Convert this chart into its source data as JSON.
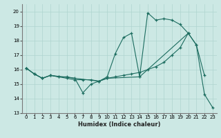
{
  "xlabel": "Humidex (Indice chaleur)",
  "bg_color": "#cce8e4",
  "grid_color": "#aed4cf",
  "line_color": "#1a6b5e",
  "xlim": [
    -0.5,
    23.5
  ],
  "ylim": [
    13,
    20.5
  ],
  "yticks": [
    13,
    14,
    15,
    16,
    17,
    18,
    19,
    20
  ],
  "xticks": [
    0,
    1,
    2,
    3,
    4,
    5,
    6,
    7,
    8,
    9,
    10,
    11,
    12,
    13,
    14,
    15,
    16,
    17,
    18,
    19,
    20,
    21,
    22,
    23
  ],
  "line1_x": [
    0,
    1,
    2,
    3,
    4,
    5,
    6,
    7,
    8,
    9,
    10,
    11,
    12,
    13,
    14,
    15,
    16,
    17,
    18,
    19,
    20,
    21,
    22
  ],
  "line1_y": [
    16.1,
    15.7,
    15.4,
    15.6,
    15.5,
    15.5,
    15.4,
    14.4,
    15.0,
    15.2,
    15.5,
    17.1,
    18.2,
    18.5,
    15.5,
    19.9,
    19.4,
    19.5,
    19.4,
    19.1,
    18.5,
    17.7,
    15.6
  ],
  "line2_x": [
    0,
    1,
    2,
    3,
    4,
    5,
    6,
    7,
    8,
    9,
    10,
    11,
    12,
    13,
    14,
    15,
    16,
    17,
    18,
    19,
    20
  ],
  "line2_y": [
    16.1,
    15.7,
    15.4,
    15.6,
    15.5,
    15.4,
    15.3,
    15.3,
    15.3,
    15.2,
    15.4,
    15.5,
    15.6,
    15.7,
    15.8,
    16.0,
    16.2,
    16.5,
    17.0,
    17.5,
    18.5
  ],
  "line3_x": [
    0,
    1,
    2,
    3,
    9,
    10,
    14,
    20,
    21,
    22,
    23
  ],
  "line3_y": [
    16.1,
    15.7,
    15.4,
    15.6,
    15.2,
    15.4,
    15.5,
    18.5,
    17.7,
    14.3,
    13.4
  ]
}
